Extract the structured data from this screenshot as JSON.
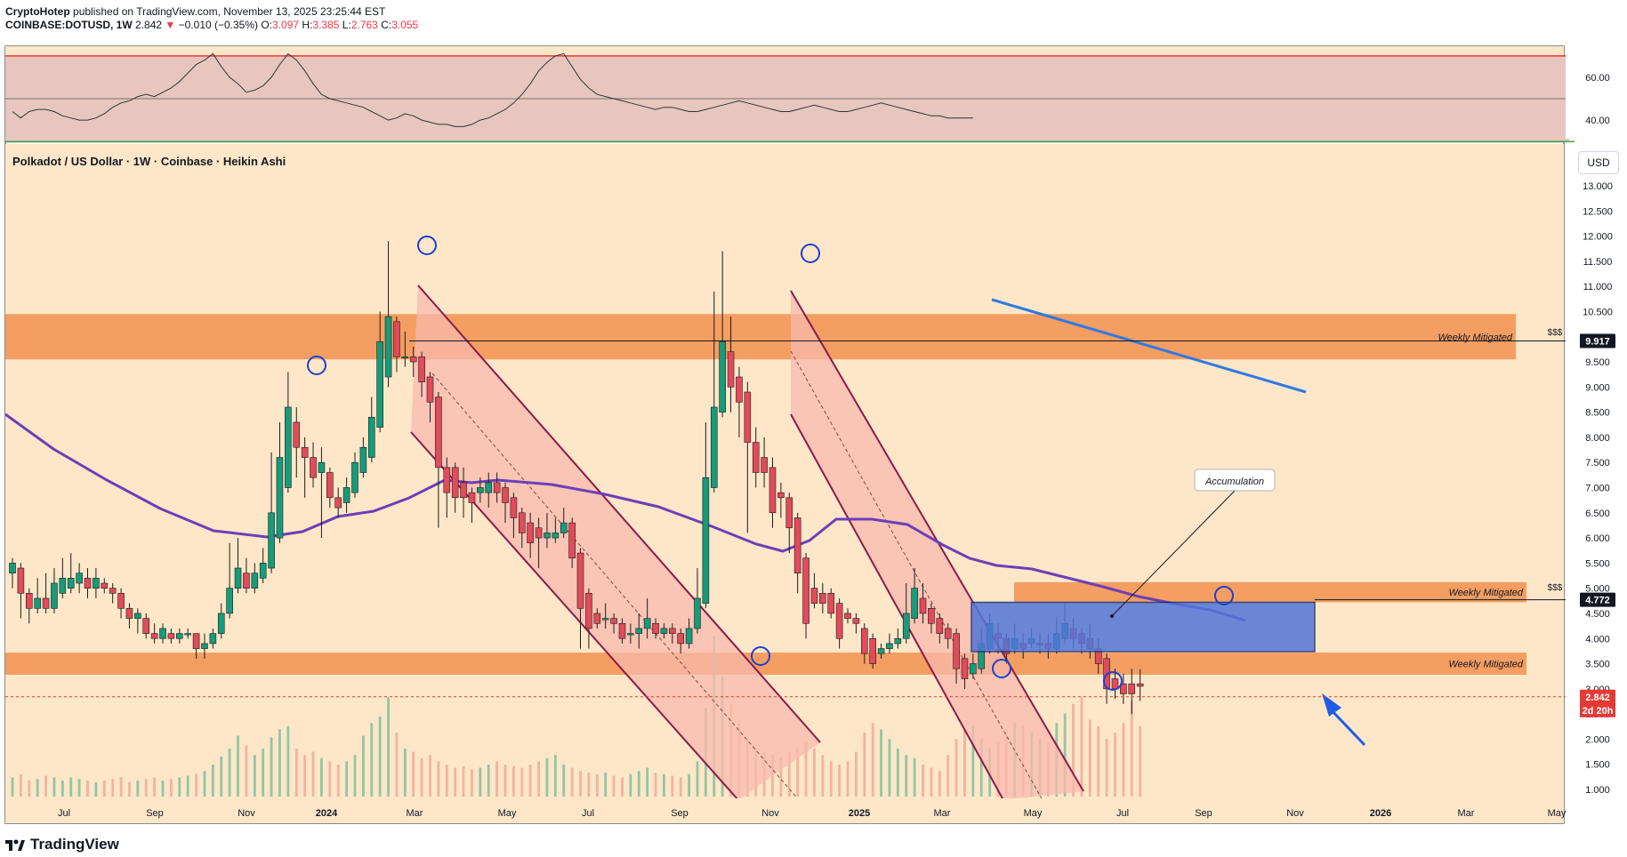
{
  "header": {
    "author": "CryptoHotep",
    "published_text": "published on TradingView.com, November 13, 2025 23:25:44 EST",
    "symbol": "COINBASE:DOTUSD, 1W",
    "last": "2.842",
    "change": "−0.010 (−0.35%)",
    "o_label": "O:",
    "o_value": "3.097",
    "h_label": "H:",
    "h_value": "3.385",
    "l_label": "L:",
    "l_value": "2.763",
    "c_label": "C:",
    "c_value": "3.055"
  },
  "pane_title": "Polkadot / US Dollar · 1W · Coinbase · Heikin Ashi",
  "currency_button": "USD",
  "footer": {
    "brand": "TradingView"
  },
  "colors": {
    "background": "#fde7c8",
    "zone": "#f2914f",
    "channel": "#f8b9ad",
    "channel_line": "#8a1a4b",
    "accumulation": "#5276d8",
    "ma": "#6b3fb8",
    "trendline": "#2f79e5",
    "up": "#179b7a",
    "down": "#e14b5a",
    "rsi_band": "#e7c6c0",
    "arrow": "#1f5ce8"
  },
  "chart_data": {
    "type": "candlestick",
    "title": "Polkadot / US Dollar · 1W · Coinbase · Heikin Ashi",
    "y_axis": {
      "unit": "USD",
      "range": [
        0.9,
        13.2
      ],
      "ticks": [
        "13.000",
        "12.500",
        "12.000",
        "11.500",
        "11.000",
        "10.500",
        "10.000",
        "9.500",
        "9.000",
        "8.500",
        "8.000",
        "7.500",
        "7.000",
        "6.500",
        "6.000",
        "5.500",
        "5.000",
        "4.500",
        "4.000",
        "3.500",
        "3.000",
        "2.500",
        "2.000",
        "1.500",
        "1.000"
      ]
    },
    "x_axis": {
      "ticks": [
        "Jul",
        "Sep",
        "Nov",
        "2024",
        "Mar",
        "May",
        "Jul",
        "Sep",
        "Nov",
        "2025",
        "Mar",
        "May",
        "Jul",
        "Sep",
        "Nov",
        "2026",
        "Mar",
        "May"
      ]
    },
    "price_labels": [
      {
        "text": "9.917",
        "value": 9.917,
        "style": "dark"
      },
      {
        "text": "4.772",
        "value": 4.772,
        "style": "dark"
      },
      {
        "text": "2.842",
        "value": 2.842,
        "style": "red"
      },
      {
        "text": "2d 20h",
        "value": 2.6,
        "style": "red"
      }
    ],
    "zones": [
      {
        "label": "Weekly Mitigated",
        "top": 10.45,
        "bottom": 9.55,
        "extra_label": "$$$"
      },
      {
        "label": "Weekly Mitigated",
        "top": 5.12,
        "bottom": 4.72,
        "extra_label": "$$$"
      },
      {
        "label": "Weekly Mitigated",
        "top": 3.72,
        "bottom": 3.28,
        "extra_label": ""
      }
    ],
    "annotations": [
      "Accumulation"
    ],
    "candles": [
      {
        "o": 5.3,
        "c": 5.5,
        "h": 5.6,
        "l": 5.0
      },
      {
        "o": 5.4,
        "c": 4.9,
        "h": 5.5,
        "l": 4.4
      },
      {
        "o": 4.9,
        "c": 4.6,
        "h": 5.0,
        "l": 4.3
      },
      {
        "o": 4.6,
        "c": 4.8,
        "h": 5.2,
        "l": 4.5
      },
      {
        "o": 4.8,
        "c": 4.6,
        "h": 5.3,
        "l": 4.5
      },
      {
        "o": 4.6,
        "c": 5.1,
        "h": 5.4,
        "l": 4.5
      },
      {
        "o": 4.9,
        "c": 5.2,
        "h": 5.6,
        "l": 4.8
      },
      {
        "o": 5.0,
        "c": 5.2,
        "h": 5.7,
        "l": 4.9
      },
      {
        "o": 5.1,
        "c": 5.3,
        "h": 5.5,
        "l": 4.9
      },
      {
        "o": 5.2,
        "c": 5.0,
        "h": 5.4,
        "l": 4.8
      },
      {
        "o": 5.0,
        "c": 5.2,
        "h": 5.4,
        "l": 4.8
      },
      {
        "o": 5.1,
        "c": 5.0,
        "h": 5.2,
        "l": 4.9
      },
      {
        "o": 5.0,
        "c": 4.9,
        "h": 5.1,
        "l": 4.7
      },
      {
        "o": 4.9,
        "c": 4.6,
        "h": 5.0,
        "l": 4.4
      },
      {
        "o": 4.6,
        "c": 4.4,
        "h": 4.7,
        "l": 4.2
      },
      {
        "o": 4.4,
        "c": 4.5,
        "h": 4.6,
        "l": 4.1
      },
      {
        "o": 4.4,
        "c": 4.1,
        "h": 4.5,
        "l": 4.0
      },
      {
        "o": 4.1,
        "c": 4.0,
        "h": 4.3,
        "l": 3.9
      },
      {
        "o": 4.0,
        "c": 4.2,
        "h": 4.3,
        "l": 3.9
      },
      {
        "o": 4.1,
        "c": 4.0,
        "h": 4.2,
        "l": 3.9
      },
      {
        "o": 4.0,
        "c": 4.1,
        "h": 4.2,
        "l": 3.9
      },
      {
        "o": 4.1,
        "c": 4.1,
        "h": 4.2,
        "l": 4.0
      },
      {
        "o": 4.1,
        "c": 3.8,
        "h": 4.1,
        "l": 3.6
      },
      {
        "o": 3.8,
        "c": 3.9,
        "h": 4.1,
        "l": 3.6
      },
      {
        "o": 3.9,
        "c": 4.1,
        "h": 4.2,
        "l": 3.8
      },
      {
        "o": 4.1,
        "c": 4.5,
        "h": 4.7,
        "l": 4.0
      },
      {
        "o": 4.5,
        "c": 5.0,
        "h": 5.9,
        "l": 4.4
      },
      {
        "o": 5.0,
        "c": 5.4,
        "h": 6.0,
        "l": 4.9
      },
      {
        "o": 5.3,
        "c": 5.0,
        "h": 5.6,
        "l": 4.9
      },
      {
        "o": 5.0,
        "c": 5.3,
        "h": 5.5,
        "l": 4.9
      },
      {
        "o": 5.2,
        "c": 5.5,
        "h": 5.8,
        "l": 5.1
      },
      {
        "o": 5.4,
        "c": 6.5,
        "h": 7.7,
        "l": 5.3
      },
      {
        "o": 6.0,
        "c": 7.6,
        "h": 8.3,
        "l": 5.9
      },
      {
        "o": 7.0,
        "c": 8.6,
        "h": 9.3,
        "l": 6.9
      },
      {
        "o": 8.3,
        "c": 7.8,
        "h": 8.6,
        "l": 7.2
      },
      {
        "o": 7.8,
        "c": 7.6,
        "h": 8.0,
        "l": 6.8
      },
      {
        "o": 7.6,
        "c": 7.2,
        "h": 7.9,
        "l": 7.0
      },
      {
        "o": 7.3,
        "c": 7.5,
        "h": 7.8,
        "l": 6.0
      },
      {
        "o": 7.3,
        "c": 6.8,
        "h": 7.4,
        "l": 6.6
      },
      {
        "o": 6.8,
        "c": 6.6,
        "h": 7.0,
        "l": 6.4
      },
      {
        "o": 6.7,
        "c": 7.0,
        "h": 7.2,
        "l": 6.5
      },
      {
        "o": 6.9,
        "c": 7.5,
        "h": 7.7,
        "l": 6.8
      },
      {
        "o": 7.3,
        "c": 7.8,
        "h": 8.0,
        "l": 7.2
      },
      {
        "o": 7.6,
        "c": 8.4,
        "h": 8.8,
        "l": 7.5
      },
      {
        "o": 8.2,
        "c": 9.9,
        "h": 10.5,
        "l": 8.1
      },
      {
        "o": 9.2,
        "c": 10.4,
        "h": 11.9,
        "l": 9.0
      },
      {
        "o": 10.3,
        "c": 9.6,
        "h": 10.4,
        "l": 9.3
      },
      {
        "o": 9.6,
        "c": 9.6,
        "h": 10.1,
        "l": 9.4
      },
      {
        "o": 9.6,
        "c": 9.5,
        "h": 9.8,
        "l": 9.2
      },
      {
        "o": 9.6,
        "c": 9.1,
        "h": 9.7,
        "l": 8.8
      },
      {
        "o": 9.2,
        "c": 8.7,
        "h": 9.3,
        "l": 8.3
      },
      {
        "o": 8.8,
        "c": 7.4,
        "h": 8.9,
        "l": 6.2
      },
      {
        "o": 7.4,
        "c": 6.9,
        "h": 7.6,
        "l": 6.4
      },
      {
        "o": 7.4,
        "c": 6.8,
        "h": 7.5,
        "l": 6.5
      },
      {
        "o": 7.1,
        "c": 6.8,
        "h": 7.4,
        "l": 6.4
      },
      {
        "o": 6.9,
        "c": 6.7,
        "h": 7.0,
        "l": 6.3
      },
      {
        "o": 6.9,
        "c": 7.0,
        "h": 7.2,
        "l": 6.7
      },
      {
        "o": 6.9,
        "c": 7.1,
        "h": 7.3,
        "l": 6.6
      },
      {
        "o": 7.1,
        "c": 6.9,
        "h": 7.3,
        "l": 6.7
      },
      {
        "o": 7.0,
        "c": 6.7,
        "h": 7.1,
        "l": 6.3
      },
      {
        "o": 6.8,
        "c": 6.4,
        "h": 6.9,
        "l": 6.0
      },
      {
        "o": 6.5,
        "c": 6.1,
        "h": 6.6,
        "l": 5.8
      },
      {
        "o": 6.3,
        "c": 5.9,
        "h": 6.5,
        "l": 5.6
      },
      {
        "o": 6.2,
        "c": 6.0,
        "h": 6.4,
        "l": 5.4
      },
      {
        "o": 6.0,
        "c": 6.1,
        "h": 6.5,
        "l": 5.8
      },
      {
        "o": 6.0,
        "c": 6.1,
        "h": 6.4,
        "l": 5.9
      },
      {
        "o": 6.1,
        "c": 6.3,
        "h": 6.6,
        "l": 6.0
      },
      {
        "o": 6.3,
        "c": 5.6,
        "h": 6.4,
        "l": 5.4
      },
      {
        "o": 5.7,
        "c": 4.6,
        "h": 5.8,
        "l": 3.8
      },
      {
        "o": 4.9,
        "c": 4.2,
        "h": 5.0,
        "l": 3.8
      },
      {
        "o": 4.5,
        "c": 4.3,
        "h": 4.6,
        "l": 4.2
      },
      {
        "o": 4.4,
        "c": 4.4,
        "h": 4.7,
        "l": 4.2
      },
      {
        "o": 4.4,
        "c": 4.3,
        "h": 4.5,
        "l": 4.1
      },
      {
        "o": 4.3,
        "c": 4.0,
        "h": 4.4,
        "l": 3.9
      },
      {
        "o": 4.1,
        "c": 4.1,
        "h": 4.3,
        "l": 3.9
      },
      {
        "o": 4.1,
        "c": 4.2,
        "h": 4.5,
        "l": 3.8
      },
      {
        "o": 4.2,
        "c": 4.4,
        "h": 4.8,
        "l": 4.0
      },
      {
        "o": 4.3,
        "c": 4.1,
        "h": 4.4,
        "l": 4.0
      },
      {
        "o": 4.1,
        "c": 4.2,
        "h": 4.3,
        "l": 4.0
      },
      {
        "o": 4.2,
        "c": 4.1,
        "h": 4.3,
        "l": 3.9
      },
      {
        "o": 4.1,
        "c": 3.9,
        "h": 4.2,
        "l": 3.7
      },
      {
        "o": 3.9,
        "c": 4.2,
        "h": 4.4,
        "l": 3.8
      },
      {
        "o": 4.2,
        "c": 4.8,
        "h": 5.4,
        "l": 4.1
      },
      {
        "o": 4.7,
        "c": 7.2,
        "h": 8.3,
        "l": 4.6
      },
      {
        "o": 7.0,
        "c": 8.6,
        "h": 10.9,
        "l": 6.9
      },
      {
        "o": 8.5,
        "c": 9.9,
        "h": 11.7,
        "l": 8.4
      },
      {
        "o": 9.7,
        "c": 9.0,
        "h": 10.4,
        "l": 8.5
      },
      {
        "o": 9.2,
        "c": 8.7,
        "h": 9.4,
        "l": 8.0
      },
      {
        "o": 8.9,
        "c": 7.9,
        "h": 9.1,
        "l": 6.1
      },
      {
        "o": 7.9,
        "c": 7.3,
        "h": 8.2,
        "l": 7.0
      },
      {
        "o": 7.6,
        "c": 7.3,
        "h": 8.0,
        "l": 7.0
      },
      {
        "o": 7.4,
        "c": 6.5,
        "h": 7.6,
        "l": 6.2
      },
      {
        "o": 6.9,
        "c": 6.8,
        "h": 7.1,
        "l": 6.4
      },
      {
        "o": 6.8,
        "c": 6.2,
        "h": 6.9,
        "l": 5.7
      },
      {
        "o": 6.4,
        "c": 5.3,
        "h": 6.5,
        "l": 4.9
      },
      {
        "o": 5.6,
        "c": 4.3,
        "h": 5.7,
        "l": 4.0
      },
      {
        "o": 5.0,
        "c": 4.7,
        "h": 5.3,
        "l": 4.6
      },
      {
        "o": 4.9,
        "c": 4.7,
        "h": 5.1,
        "l": 4.5
      },
      {
        "o": 4.9,
        "c": 4.5,
        "h": 5.0,
        "l": 4.4
      },
      {
        "o": 4.7,
        "c": 4.0,
        "h": 4.8,
        "l": 3.8
      },
      {
        "o": 4.5,
        "c": 4.4,
        "h": 4.6,
        "l": 4.3
      },
      {
        "o": 4.4,
        "c": 4.3,
        "h": 4.5,
        "l": 4.1
      },
      {
        "o": 4.2,
        "c": 3.7,
        "h": 4.3,
        "l": 3.5
      },
      {
        "o": 4.0,
        "c": 3.5,
        "h": 4.1,
        "l": 3.4
      },
      {
        "o": 3.7,
        "c": 3.8,
        "h": 3.9,
        "l": 3.6
      },
      {
        "o": 3.8,
        "c": 3.9,
        "h": 4.1,
        "l": 3.7
      },
      {
        "o": 3.9,
        "c": 4.0,
        "h": 4.2,
        "l": 3.8
      },
      {
        "o": 4.0,
        "c": 4.5,
        "h": 5.1,
        "l": 3.9
      },
      {
        "o": 4.4,
        "c": 5.0,
        "h": 5.4,
        "l": 4.3
      },
      {
        "o": 4.8,
        "c": 4.5,
        "h": 5.1,
        "l": 4.3
      },
      {
        "o": 4.6,
        "c": 4.3,
        "h": 4.7,
        "l": 4.1
      },
      {
        "o": 4.4,
        "c": 4.1,
        "h": 4.5,
        "l": 3.9
      },
      {
        "o": 4.2,
        "c": 4.0,
        "h": 4.3,
        "l": 3.8
      },
      {
        "o": 4.1,
        "c": 3.4,
        "h": 4.2,
        "l": 3.1
      },
      {
        "o": 3.6,
        "c": 3.2,
        "h": 3.7,
        "l": 3.0
      },
      {
        "o": 3.3,
        "c": 3.5,
        "h": 3.7,
        "l": 3.2
      },
      {
        "o": 3.4,
        "c": 3.9,
        "h": 4.2,
        "l": 3.3
      },
      {
        "o": 3.8,
        "c": 4.3,
        "h": 4.5,
        "l": 3.7
      },
      {
        "o": 4.1,
        "c": 4.0,
        "h": 4.3,
        "l": 3.7
      },
      {
        "o": 4.0,
        "c": 3.7,
        "h": 4.1,
        "l": 3.5
      },
      {
        "o": 3.8,
        "c": 4.0,
        "h": 4.3,
        "l": 3.7
      },
      {
        "o": 3.9,
        "c": 3.8,
        "h": 4.1,
        "l": 3.6
      },
      {
        "o": 3.9,
        "c": 4.0,
        "h": 4.2,
        "l": 3.8
      },
      {
        "o": 3.9,
        "c": 3.9,
        "h": 4.1,
        "l": 3.7
      },
      {
        "o": 3.9,
        "c": 3.8,
        "h": 4.1,
        "l": 3.6
      },
      {
        "o": 3.8,
        "c": 4.1,
        "h": 4.4,
        "l": 3.7
      },
      {
        "o": 4.0,
        "c": 4.3,
        "h": 4.7,
        "l": 3.9
      },
      {
        "o": 4.2,
        "c": 4.0,
        "h": 4.4,
        "l": 3.8
      },
      {
        "o": 4.1,
        "c": 3.9,
        "h": 4.2,
        "l": 3.7
      },
      {
        "o": 4.0,
        "c": 3.8,
        "h": 4.3,
        "l": 3.6
      },
      {
        "o": 3.8,
        "c": 3.5,
        "h": 4.0,
        "l": 3.3
      },
      {
        "o": 3.6,
        "c": 3.0,
        "h": 3.7,
        "l": 2.7
      },
      {
        "o": 3.2,
        "c": 3.0,
        "h": 3.4,
        "l": 2.8
      },
      {
        "o": 3.1,
        "c": 2.9,
        "h": 3.3,
        "l": 2.7
      },
      {
        "o": 3.1,
        "c": 2.9,
        "h": 3.4,
        "l": 2.5
      },
      {
        "o": 3.1,
        "c": 3.05,
        "h": 3.39,
        "l": 2.76
      }
    ],
    "rsi": {
      "ticks": [
        "60.00",
        "40.00"
      ],
      "range": [
        33,
        72
      ],
      "levels": [
        70,
        50,
        30
      ],
      "values": [
        44,
        41,
        44,
        45,
        45,
        44,
        42,
        41,
        40,
        40,
        41,
        43,
        46,
        48,
        49,
        51,
        52,
        51,
        53,
        55,
        58,
        62,
        66,
        68,
        71,
        65,
        60,
        57,
        53,
        54,
        56,
        60,
        66,
        71,
        68,
        63,
        57,
        52,
        50,
        49,
        48,
        47,
        46,
        44,
        42,
        40,
        41,
        43,
        42,
        40,
        39,
        38,
        38,
        37,
        37,
        38,
        40,
        41,
        43,
        45,
        48,
        52,
        57,
        63,
        67,
        70,
        71,
        65,
        59,
        55,
        52,
        51,
        50,
        49,
        48,
        47,
        46,
        45,
        46,
        46,
        45,
        44,
        44,
        45,
        46,
        47,
        48,
        49,
        48,
        47,
        46,
        45,
        44,
        44,
        45,
        46,
        47,
        46,
        45,
        44,
        44,
        45,
        46,
        47,
        48,
        47,
        46,
        45,
        44,
        43,
        42,
        42,
        41,
        41,
        41,
        41
      ]
    },
    "volume": [
      0.12,
      0.14,
      0.1,
      0.11,
      0.13,
      0.12,
      0.1,
      0.12,
      0.11,
      0.1,
      0.09,
      0.1,
      0.11,
      0.12,
      0.09,
      0.1,
      0.11,
      0.12,
      0.1,
      0.11,
      0.12,
      0.13,
      0.14,
      0.16,
      0.2,
      0.25,
      0.3,
      0.38,
      0.32,
      0.26,
      0.3,
      0.37,
      0.42,
      0.44,
      0.3,
      0.26,
      0.28,
      0.24,
      0.22,
      0.2,
      0.22,
      0.26,
      0.38,
      0.46,
      0.5,
      0.62,
      0.4,
      0.3,
      0.28,
      0.24,
      0.26,
      0.22,
      0.2,
      0.18,
      0.19,
      0.17,
      0.18,
      0.2,
      0.22,
      0.2,
      0.19,
      0.18,
      0.2,
      0.22,
      0.24,
      0.26,
      0.2,
      0.18,
      0.16,
      0.15,
      0.14,
      0.15,
      0.13,
      0.12,
      0.14,
      0.16,
      0.18,
      0.15,
      0.14,
      0.13,
      0.12,
      0.14,
      0.22,
      0.55,
      1.0,
      0.75,
      0.58,
      0.46,
      0.36,
      0.3,
      0.28,
      0.26,
      0.24,
      0.28,
      0.3,
      0.34,
      0.3,
      0.26,
      0.22,
      0.2,
      0.22,
      0.28,
      0.4,
      0.46,
      0.42,
      0.36,
      0.3,
      0.26,
      0.24,
      0.2,
      0.18,
      0.16,
      0.26,
      0.36,
      0.42,
      0.44,
      0.36,
      0.3,
      0.34,
      0.42,
      0.46,
      0.44,
      0.4,
      0.36,
      0.34,
      0.46,
      0.52,
      0.58,
      0.62,
      0.48,
      0.44,
      0.36,
      0.4,
      0.46,
      0.6,
      0.44
    ]
  }
}
